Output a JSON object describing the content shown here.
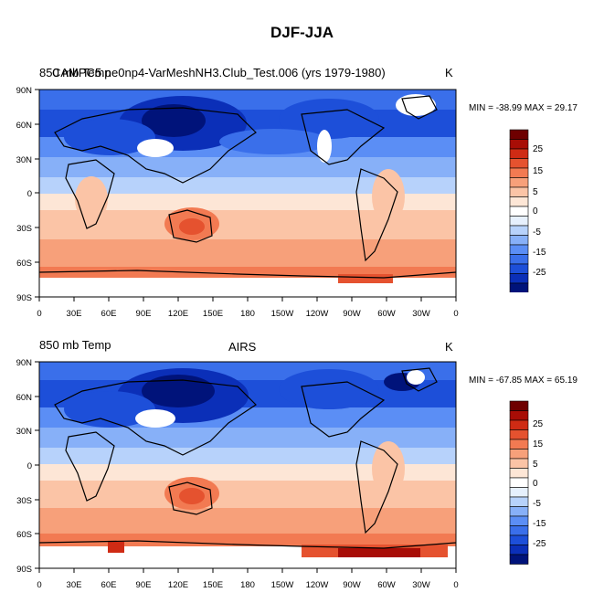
{
  "figure": {
    "title": "DJF-JJA"
  },
  "lat_labels": [
    "90N",
    "60N",
    "30N",
    "0",
    "30S",
    "60S",
    "90S"
  ],
  "lon_labels": [
    "0",
    "30E",
    "60E",
    "90E",
    "120E",
    "150E",
    "180",
    "150W",
    "120W",
    "90W",
    "60W",
    "30W",
    "0"
  ],
  "legend_labels": [
    "25",
    "15",
    "5",
    "0",
    "-5",
    "-15",
    "-25"
  ],
  "colors": {
    "scale": [
      "#00137a",
      "#0b2fb8",
      "#1d4fd9",
      "#3a6fea",
      "#5b8ef5",
      "#87b0f8",
      "#b7d2fb",
      "#e6f0fd",
      "#ffffff",
      "#fde6d6",
      "#fbc4a6",
      "#f7a07a",
      "#f27a52",
      "#e5522f",
      "#cf2b14",
      "#a80d06",
      "#6e0000"
    ]
  },
  "panels": [
    {
      "left_label": "850 mb Temp",
      "center_label": "CAM5_ne0np4-VarMeshNH3.Club_Test.006 (yrs 1979-1980)",
      "overlay_label": "CAMPC5.ne0np4-VarMeshNH3.Club_Test.006 (yrs 1979-1980)",
      "units": "K",
      "stats": "MIN = -38.99 MAX =  29.17"
    },
    {
      "left_label": "850 mb Temp",
      "center_label": "AIRS",
      "units": "K",
      "stats": "MIN = -67.85 MAX =  65.19"
    }
  ]
}
